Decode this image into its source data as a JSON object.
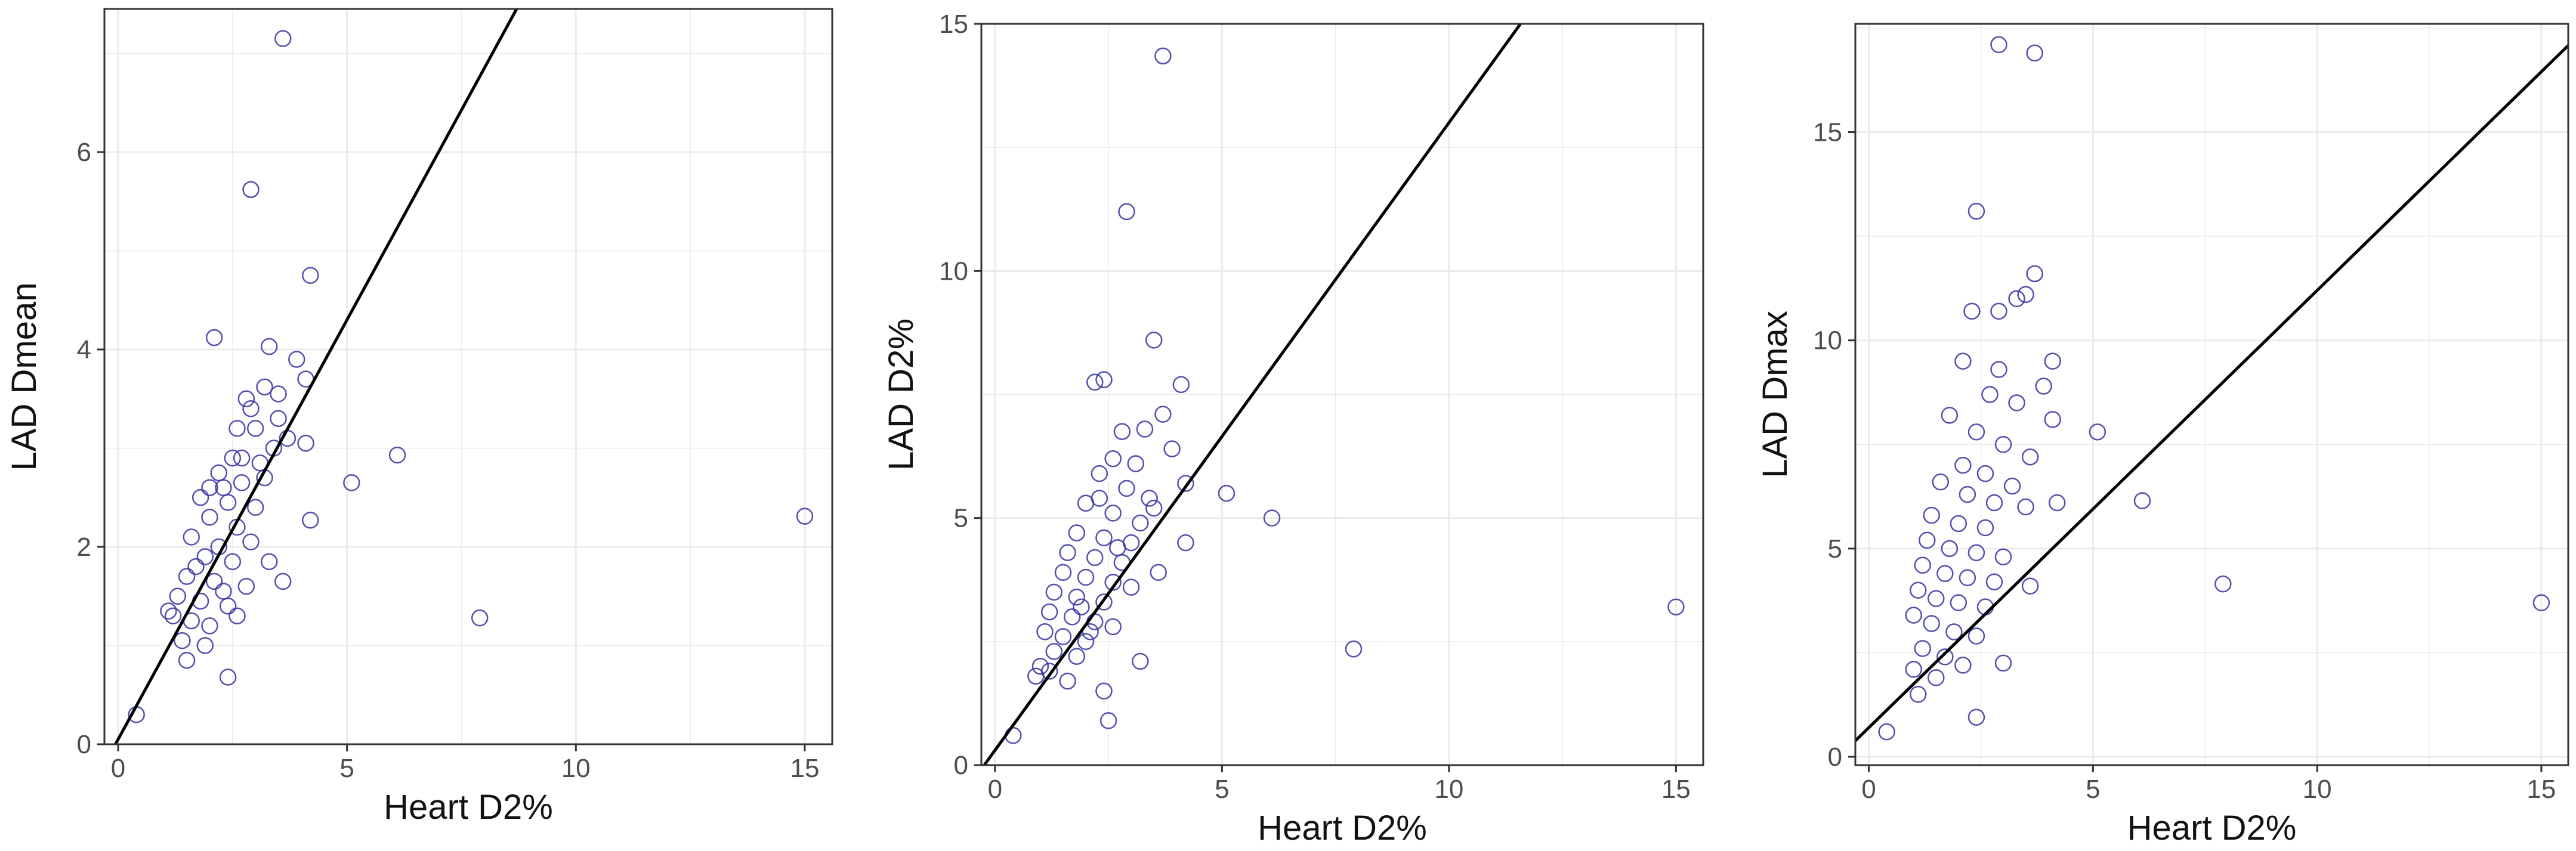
{
  "colors": {
    "points": "#3333a0",
    "fit_line": "#000000",
    "grid": "#ebebeb",
    "frame": "#333333"
  },
  "chart_data": [
    {
      "type": "scatter",
      "title": "",
      "xlabel": "Heart D2%",
      "ylabel": "LAD Dmean",
      "xlim": [
        -0.3,
        15.6
      ],
      "ylim": [
        0,
        7.45
      ],
      "xticks": [
        0,
        5,
        10,
        15
      ],
      "yticks": [
        0,
        2,
        4,
        6
      ],
      "grid": true,
      "fit_line": {
        "slope": 0.85,
        "intercept": 0.05
      },
      "points": [
        [
          0.4,
          0.3
        ],
        [
          3.6,
          7.15
        ],
        [
          2.9,
          5.62
        ],
        [
          4.2,
          4.75
        ],
        [
          2.1,
          4.12
        ],
        [
          3.3,
          4.03
        ],
        [
          3.9,
          3.9
        ],
        [
          4.1,
          3.7
        ],
        [
          3.2,
          3.62
        ],
        [
          3.5,
          3.55
        ],
        [
          2.8,
          3.5
        ],
        [
          3.0,
          3.2
        ],
        [
          3.7,
          3.1
        ],
        [
          4.1,
          3.05
        ],
        [
          2.6,
          3.2
        ],
        [
          3.4,
          3.0
        ],
        [
          2.5,
          2.9
        ],
        [
          3.1,
          2.85
        ],
        [
          2.2,
          2.75
        ],
        [
          2.7,
          2.65
        ],
        [
          1.8,
          2.5
        ],
        [
          2.4,
          2.45
        ],
        [
          3.0,
          2.4
        ],
        [
          2.0,
          2.3
        ],
        [
          2.6,
          2.2
        ],
        [
          1.6,
          2.1
        ],
        [
          2.2,
          2.0
        ],
        [
          2.9,
          2.05
        ],
        [
          1.9,
          1.9
        ],
        [
          2.5,
          1.85
        ],
        [
          1.5,
          1.7
        ],
        [
          2.1,
          1.65
        ],
        [
          2.8,
          1.6
        ],
        [
          1.3,
          1.5
        ],
        [
          1.8,
          1.45
        ],
        [
          2.4,
          1.4
        ],
        [
          1.2,
          1.3
        ],
        [
          1.6,
          1.25
        ],
        [
          2.0,
          1.2
        ],
        [
          2.6,
          1.3
        ],
        [
          1.4,
          1.05
        ],
        [
          1.9,
          1.0
        ],
        [
          1.5,
          0.85
        ],
        [
          2.4,
          0.68
        ],
        [
          3.3,
          1.85
        ],
        [
          4.2,
          2.27
        ],
        [
          3.6,
          1.65
        ],
        [
          5.1,
          2.65
        ],
        [
          6.1,
          2.93
        ],
        [
          7.9,
          1.28
        ],
        [
          15.0,
          2.31
        ],
        [
          2.3,
          2.6
        ],
        [
          2.7,
          2.9
        ],
        [
          1.7,
          1.8
        ],
        [
          2.3,
          1.55
        ],
        [
          3.2,
          2.7
        ],
        [
          2.0,
          2.6
        ],
        [
          3.5,
          3.3
        ],
        [
          2.9,
          3.4
        ],
        [
          1.1,
          1.35
        ]
      ]
    },
    {
      "type": "scatter",
      "title": "",
      "xlabel": "Heart D2%",
      "ylabel": "LAD D2%",
      "xlim": [
        -0.3,
        15.6
      ],
      "ylim": [
        0,
        15
      ],
      "xticks": [
        0,
        5,
        10,
        15
      ],
      "yticks": [
        0,
        5,
        10,
        15
      ],
      "grid": true,
      "fit_line": {
        "slope": 1.27,
        "intercept": 0.3
      },
      "points": [
        [
          0.4,
          0.6
        ],
        [
          3.7,
          14.35
        ],
        [
          2.9,
          11.2
        ],
        [
          2.2,
          7.75
        ],
        [
          2.4,
          7.8
        ],
        [
          3.5,
          8.6
        ],
        [
          4.1,
          7.7
        ],
        [
          3.7,
          7.1
        ],
        [
          2.8,
          6.75
        ],
        [
          3.3,
          6.8
        ],
        [
          3.9,
          6.4
        ],
        [
          2.6,
          6.2
        ],
        [
          3.1,
          6.1
        ],
        [
          4.2,
          5.7
        ],
        [
          2.3,
          5.9
        ],
        [
          2.9,
          5.6
        ],
        [
          3.5,
          5.2
        ],
        [
          2.0,
          5.3
        ],
        [
          2.6,
          5.1
        ],
        [
          3.2,
          4.9
        ],
        [
          1.8,
          4.7
        ],
        [
          2.4,
          4.6
        ],
        [
          3.0,
          4.5
        ],
        [
          1.6,
          4.3
        ],
        [
          2.2,
          4.2
        ],
        [
          2.8,
          4.1
        ],
        [
          1.5,
          3.9
        ],
        [
          2.0,
          3.8
        ],
        [
          2.6,
          3.7
        ],
        [
          1.3,
          3.5
        ],
        [
          1.8,
          3.4
        ],
        [
          2.4,
          3.3
        ],
        [
          3.0,
          3.6
        ],
        [
          1.2,
          3.1
        ],
        [
          1.7,
          3.0
        ],
        [
          2.2,
          2.9
        ],
        [
          1.1,
          2.7
        ],
        [
          1.5,
          2.6
        ],
        [
          2.0,
          2.5
        ],
        [
          2.6,
          2.8
        ],
        [
          1.3,
          2.3
        ],
        [
          1.8,
          2.2
        ],
        [
          1.2,
          1.9
        ],
        [
          1.6,
          1.7
        ],
        [
          2.4,
          1.5
        ],
        [
          3.2,
          2.1
        ],
        [
          2.5,
          0.9
        ],
        [
          4.2,
          4.5
        ],
        [
          3.6,
          3.9
        ],
        [
          5.1,
          5.5
        ],
        [
          6.1,
          5.0
        ],
        [
          7.9,
          2.35
        ],
        [
          15.0,
          3.2
        ],
        [
          2.3,
          5.4
        ],
        [
          2.7,
          4.4
        ],
        [
          1.9,
          3.2
        ],
        [
          3.4,
          5.4
        ],
        [
          2.1,
          2.7
        ],
        [
          1.0,
          2.0
        ],
        [
          0.9,
          1.8
        ]
      ]
    },
    {
      "type": "scatter",
      "title": "",
      "xlabel": "Heart D2%",
      "ylabel": "LAD Dmax",
      "xlim": [
        -0.3,
        15.6
      ],
      "ylim": [
        -0.2,
        17.6
      ],
      "xticks": [
        0,
        5,
        10,
        15
      ],
      "yticks": [
        0,
        5,
        10,
        15
      ],
      "grid": true,
      "fit_line": {
        "slope": 1.05,
        "intercept": 0.7
      },
      "points": [
        [
          0.4,
          0.6
        ],
        [
          2.9,
          17.1
        ],
        [
          3.7,
          16.9
        ],
        [
          2.4,
          13.1
        ],
        [
          3.7,
          11.6
        ],
        [
          3.5,
          11.1
        ],
        [
          2.9,
          10.7
        ],
        [
          2.3,
          10.7
        ],
        [
          3.3,
          11.0
        ],
        [
          4.1,
          9.5
        ],
        [
          2.9,
          9.3
        ],
        [
          2.1,
          9.5
        ],
        [
          3.9,
          8.9
        ],
        [
          2.7,
          8.7
        ],
        [
          3.3,
          8.5
        ],
        [
          4.1,
          8.1
        ],
        [
          1.8,
          8.2
        ],
        [
          2.4,
          7.8
        ],
        [
          3.0,
          7.5
        ],
        [
          3.6,
          7.2
        ],
        [
          2.1,
          7.0
        ],
        [
          2.6,
          6.8
        ],
        [
          3.2,
          6.5
        ],
        [
          1.6,
          6.6
        ],
        [
          2.2,
          6.3
        ],
        [
          2.8,
          6.1
        ],
        [
          3.5,
          6.0
        ],
        [
          1.4,
          5.8
        ],
        [
          2.0,
          5.6
        ],
        [
          2.6,
          5.5
        ],
        [
          1.3,
          5.2
        ],
        [
          1.8,
          5.0
        ],
        [
          2.4,
          4.9
        ],
        [
          3.0,
          4.8
        ],
        [
          1.2,
          4.6
        ],
        [
          1.7,
          4.4
        ],
        [
          2.2,
          4.3
        ],
        [
          2.8,
          4.2
        ],
        [
          1.1,
          4.0
        ],
        [
          1.5,
          3.8
        ],
        [
          2.0,
          3.7
        ],
        [
          2.6,
          3.6
        ],
        [
          1.0,
          3.4
        ],
        [
          1.4,
          3.2
        ],
        [
          1.9,
          3.0
        ],
        [
          2.4,
          2.9
        ],
        [
          1.2,
          2.6
        ],
        [
          1.7,
          2.4
        ],
        [
          1.0,
          2.1
        ],
        [
          1.5,
          1.9
        ],
        [
          1.1,
          1.5
        ],
        [
          2.4,
          0.95
        ],
        [
          3.0,
          2.25
        ],
        [
          3.6,
          4.1
        ],
        [
          4.2,
          6.1
        ],
        [
          5.1,
          7.8
        ],
        [
          6.1,
          6.15
        ],
        [
          7.9,
          4.15
        ],
        [
          15.0,
          3.7
        ],
        [
          2.1,
          2.2
        ]
      ]
    }
  ]
}
